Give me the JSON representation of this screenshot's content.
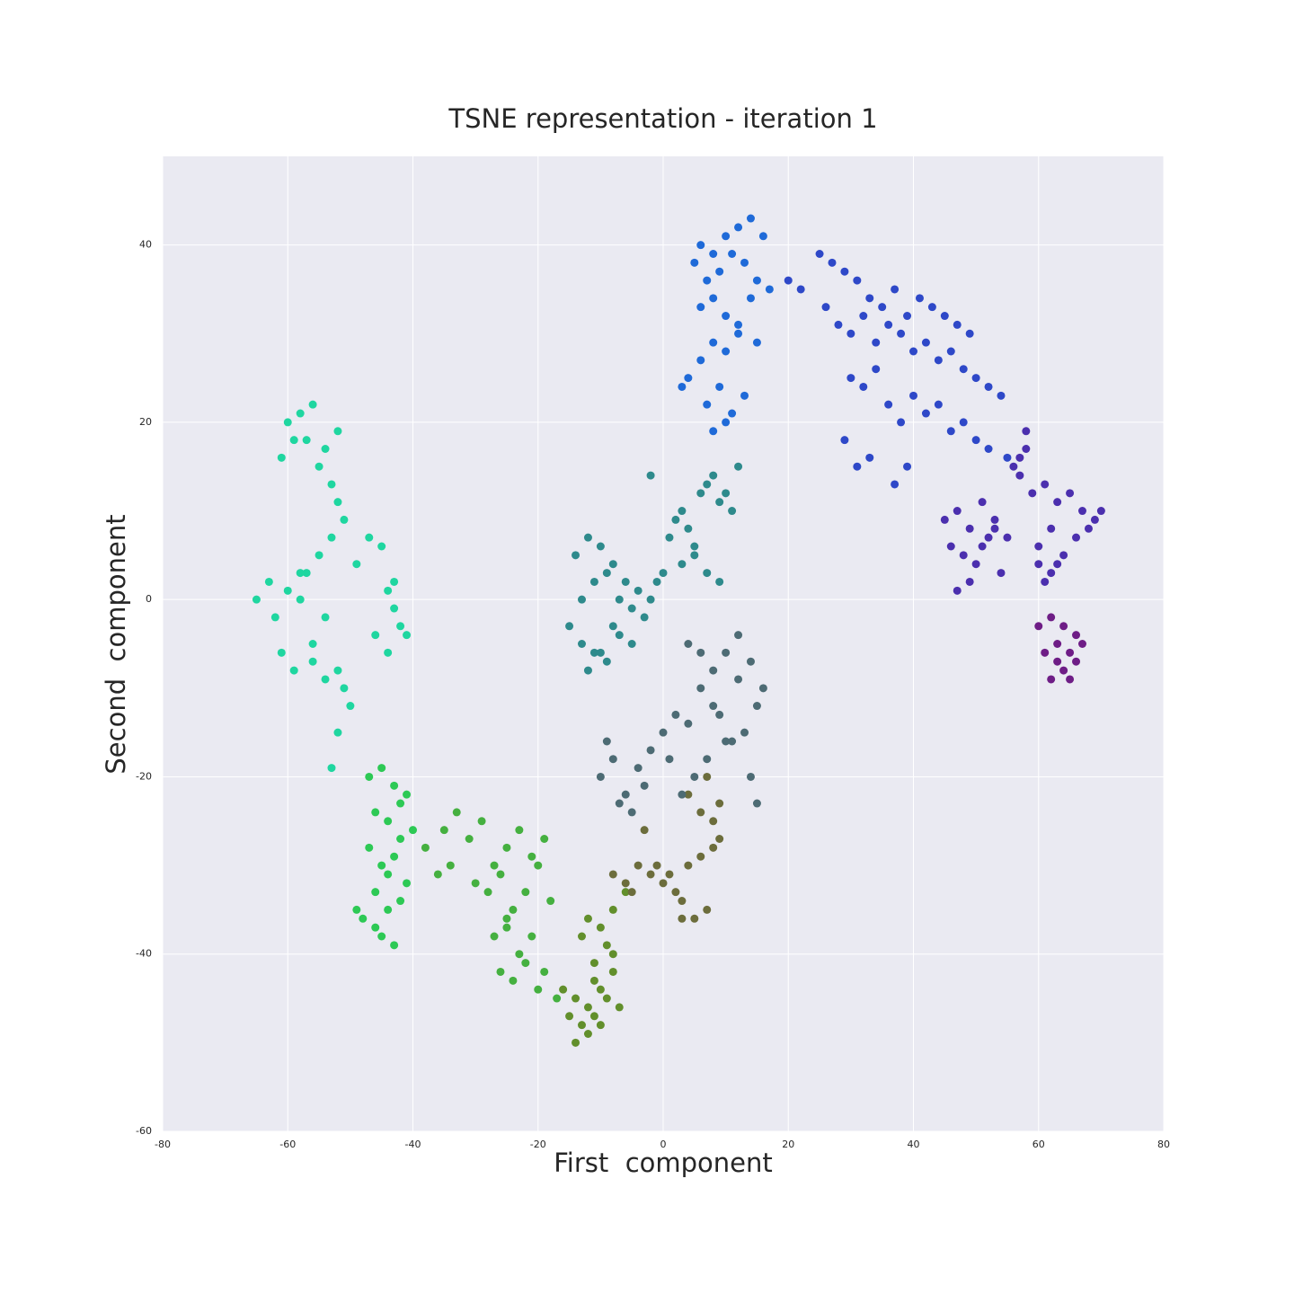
{
  "chart_data": {
    "type": "scatter",
    "title": "TSNE representation - iteration 1",
    "x_label": "First  component",
    "y_label": "Second  component",
    "xlim": [
      -80,
      80
    ],
    "ylim": [
      -60,
      50
    ],
    "xticks": [
      -80,
      -60,
      -40,
      -20,
      0,
      20,
      40,
      60,
      80
    ],
    "yticks": [
      -60,
      -40,
      -20,
      0,
      20,
      40
    ],
    "grid": true,
    "background": "#eaeaf2",
    "series": [
      {
        "color": "#1fd6a0",
        "x": [
          -60,
          -58,
          -56,
          -57,
          -54,
          -52,
          -61,
          -59,
          -55,
          -53,
          -52,
          -51,
          -53,
          -55,
          -57,
          -63,
          -65,
          -62,
          -60,
          -58,
          -61,
          -59,
          -56,
          -54,
          -52,
          -50,
          -49,
          -47,
          -45,
          -44,
          -43,
          -46,
          -44,
          -42,
          -41,
          -43,
          -52,
          -53,
          -51,
          -54,
          -56,
          -58
        ],
        "y": [
          20,
          21,
          22,
          18,
          17,
          19,
          16,
          18,
          15,
          13,
          11,
          9,
          7,
          5,
          3,
          2,
          0,
          -2,
          1,
          3,
          -6,
          -8,
          -5,
          -9,
          -8,
          -12,
          4,
          7,
          6,
          1,
          -1,
          -4,
          -6,
          -3,
          -4,
          2,
          -15,
          -19,
          -10,
          -2,
          -7,
          0
        ]
      },
      {
        "color": "#2dc955",
        "x": [
          -47,
          -45,
          -43,
          -41,
          -46,
          -44,
          -42,
          -40,
          -47,
          -45,
          -43,
          -41,
          -46,
          -44,
          -42,
          -48,
          -45,
          -43,
          -49,
          -46,
          -44,
          -42
        ],
        "y": [
          -20,
          -19,
          -21,
          -22,
          -24,
          -25,
          -23,
          -26,
          -28,
          -30,
          -29,
          -32,
          -33,
          -35,
          -34,
          -36,
          -38,
          -39,
          -35,
          -37,
          -31,
          -27
        ]
      },
      {
        "color": "#45b040",
        "x": [
          -38,
          -35,
          -33,
          -31,
          -29,
          -27,
          -25,
          -23,
          -21,
          -19,
          -36,
          -34,
          -30,
          -28,
          -26,
          -24,
          -22,
          -20,
          -18,
          -27,
          -25,
          -23,
          -21,
          -19,
          -26,
          -24,
          -22,
          -20,
          -17,
          -25
        ],
        "y": [
          -28,
          -26,
          -24,
          -27,
          -25,
          -30,
          -28,
          -26,
          -29,
          -27,
          -31,
          -30,
          -32,
          -33,
          -31,
          -35,
          -33,
          -30,
          -34,
          -38,
          -36,
          -40,
          -38,
          -42,
          -42,
          -43,
          -41,
          -44,
          -45,
          -37
        ]
      },
      {
        "color": "#628f2c",
        "x": [
          -16,
          -14,
          -12,
          -10,
          -8,
          -15,
          -13,
          -11,
          -9,
          -7,
          -14,
          -12,
          -10,
          -8,
          -13,
          -11,
          -9,
          -12,
          -10,
          -6,
          -8,
          -11
        ],
        "y": [
          -44,
          -45,
          -46,
          -44,
          -42,
          -47,
          -48,
          -47,
          -45,
          -46,
          -50,
          -49,
          -48,
          -40,
          -38,
          -41,
          -39,
          -36,
          -37,
          -33,
          -35,
          -43
        ]
      },
      {
        "color": "#6c6d3c",
        "x": [
          -8,
          -6,
          -4,
          -2,
          0,
          2,
          4,
          6,
          8,
          9,
          5,
          7,
          3,
          1,
          -1,
          -3,
          -5,
          4,
          6,
          8,
          7,
          9,
          3
        ],
        "y": [
          -31,
          -32,
          -30,
          -31,
          -32,
          -33,
          -30,
          -29,
          -28,
          -27,
          -36,
          -35,
          -34,
          -31,
          -30,
          -26,
          -33,
          -22,
          -24,
          -25,
          -20,
          -23,
          -36
        ]
      },
      {
        "color": "#2e8a8c",
        "x": [
          -15,
          -13,
          -11,
          -9,
          -7,
          -5,
          -3,
          -14,
          -12,
          -10,
          -8,
          -6,
          -4,
          -13,
          -11,
          -9,
          -7,
          -5,
          -12,
          -10,
          -8,
          -2,
          -1,
          0,
          1,
          2,
          3,
          4,
          5,
          6,
          7,
          8,
          9,
          10,
          11,
          12,
          3,
          5,
          7,
          9,
          -2
        ],
        "y": [
          -3,
          0,
          2,
          3,
          0,
          -1,
          -2,
          5,
          7,
          6,
          4,
          2,
          1,
          -5,
          -6,
          -7,
          -4,
          -5,
          -8,
          -6,
          -3,
          0,
          2,
          3,
          7,
          9,
          10,
          8,
          6,
          12,
          13,
          14,
          11,
          12,
          10,
          15,
          4,
          5,
          3,
          2,
          14
        ]
      },
      {
        "color": "#4d6b74",
        "x": [
          -10,
          -8,
          -6,
          -4,
          -2,
          0,
          2,
          4,
          6,
          8,
          10,
          12,
          14,
          16,
          15,
          13,
          11,
          9,
          7,
          5,
          3,
          1,
          -3,
          -5,
          -7,
          -9,
          14,
          15,
          12,
          10,
          8,
          6,
          4
        ],
        "y": [
          -20,
          -18,
          -22,
          -19,
          -17,
          -15,
          -13,
          -14,
          -10,
          -8,
          -6,
          -9,
          -7,
          -10,
          -12,
          -15,
          -16,
          -13,
          -18,
          -20,
          -22,
          -18,
          -21,
          -24,
          -23,
          -16,
          -20,
          -23,
          -4,
          -16,
          -12,
          -6,
          -5
        ]
      },
      {
        "color": "#1f6ad8",
        "x": [
          6,
          8,
          10,
          12,
          14,
          16,
          5,
          7,
          9,
          11,
          13,
          15,
          17,
          6,
          8,
          10,
          12,
          14,
          4,
          6,
          8,
          10,
          12,
          7,
          9,
          11,
          13,
          8,
          10,
          3,
          15
        ],
        "y": [
          40,
          39,
          41,
          42,
          43,
          41,
          38,
          36,
          37,
          39,
          38,
          36,
          35,
          33,
          34,
          32,
          31,
          34,
          25,
          27,
          29,
          28,
          30,
          22,
          24,
          21,
          23,
          19,
          20,
          24,
          29
        ]
      },
      {
        "color": "#2e48c8",
        "x": [
          20,
          22,
          25,
          27,
          29,
          31,
          33,
          35,
          37,
          39,
          41,
          43,
          45,
          47,
          49,
          26,
          28,
          30,
          32,
          34,
          36,
          38,
          40,
          42,
          44,
          46,
          48,
          50,
          52,
          54,
          30,
          32,
          34,
          36,
          38,
          40,
          42,
          44,
          46,
          48,
          50,
          52,
          55,
          29,
          31,
          33,
          37,
          39
        ],
        "y": [
          36,
          35,
          39,
          38,
          37,
          36,
          34,
          33,
          35,
          32,
          34,
          33,
          32,
          31,
          30,
          33,
          31,
          30,
          32,
          29,
          31,
          30,
          28,
          29,
          27,
          28,
          26,
          25,
          24,
          23,
          25,
          24,
          26,
          22,
          20,
          23,
          21,
          22,
          19,
          20,
          18,
          17,
          16,
          18,
          15,
          16,
          13,
          15
        ]
      },
      {
        "color": "#4b2fae",
        "x": [
          45,
          47,
          49,
          51,
          53,
          55,
          57,
          59,
          61,
          63,
          65,
          67,
          69,
          70,
          46,
          48,
          50,
          52,
          54,
          60,
          62,
          64,
          66,
          68,
          56,
          58,
          60,
          62,
          47,
          49,
          51,
          53,
          61,
          63,
          58,
          57
        ],
        "y": [
          9,
          10,
          8,
          11,
          9,
          7,
          14,
          12,
          13,
          11,
          12,
          10,
          9,
          10,
          6,
          5,
          4,
          7,
          3,
          6,
          8,
          5,
          7,
          8,
          15,
          17,
          4,
          3,
          1,
          2,
          6,
          8,
          2,
          4,
          19,
          16
        ]
      },
      {
        "color": "#6e1d86",
        "x": [
          60,
          62,
          64,
          66,
          63,
          65,
          67,
          61,
          64,
          66,
          62,
          65,
          63
        ],
        "y": [
          -3,
          -2,
          -3,
          -4,
          -5,
          -6,
          -5,
          -6,
          -8,
          -7,
          -9,
          -9,
          -7
        ]
      }
    ]
  }
}
